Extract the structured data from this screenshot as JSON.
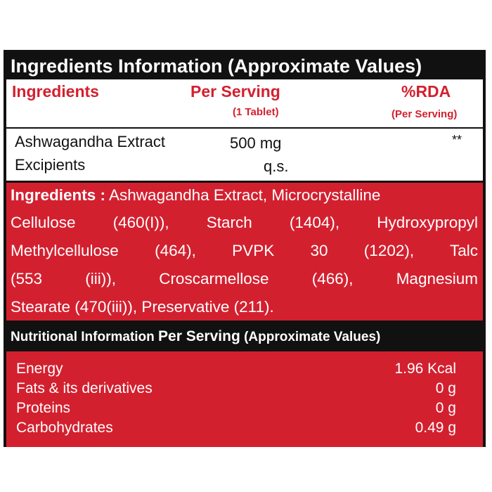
{
  "title": "Ingredients Information (Approximate Values)",
  "table": {
    "headers": {
      "ingredients": "Ingredients",
      "per_serving": "Per Serving",
      "per_serving_sub": "(1 Tablet)",
      "rda": "%RDA",
      "rda_sub": "(Per Serving)"
    },
    "rows": [
      {
        "name": "Ashwagandha Extract",
        "amount": "500 mg",
        "rda": "**"
      },
      {
        "name": "Excipients",
        "amount": "q.s.",
        "rda": ""
      }
    ]
  },
  "ingredients_text": {
    "label": "Ingredients :",
    "line1": "Ashwagandha Extract, Microcrystalline",
    "line2": "Cellulose (460(I)), Starch (1404), Hydroxypropyl",
    "line3": "Methylcellulose (464), PVPK 30 (1202), Talc",
    "line4": "(553 (iii)), Croscarmellose (466), Magnesium",
    "line5": "Stearate (470(iii)), Preservative (211)."
  },
  "nutrition": {
    "header_left": "Nutritional Information",
    "header_mid": "Per Serving",
    "header_right": "(Approximate Values)",
    "rows": [
      {
        "label": "Energy",
        "value": "1.96 Kcal"
      },
      {
        "label": "Fats & its derivatives",
        "value": "0 g"
      },
      {
        "label": "Proteins",
        "value": "0 g"
      },
      {
        "label": "Carbohydrates",
        "value": "0.49 g"
      }
    ]
  },
  "colors": {
    "red": "#d3202f",
    "black": "#111111",
    "white": "#ffffff"
  }
}
